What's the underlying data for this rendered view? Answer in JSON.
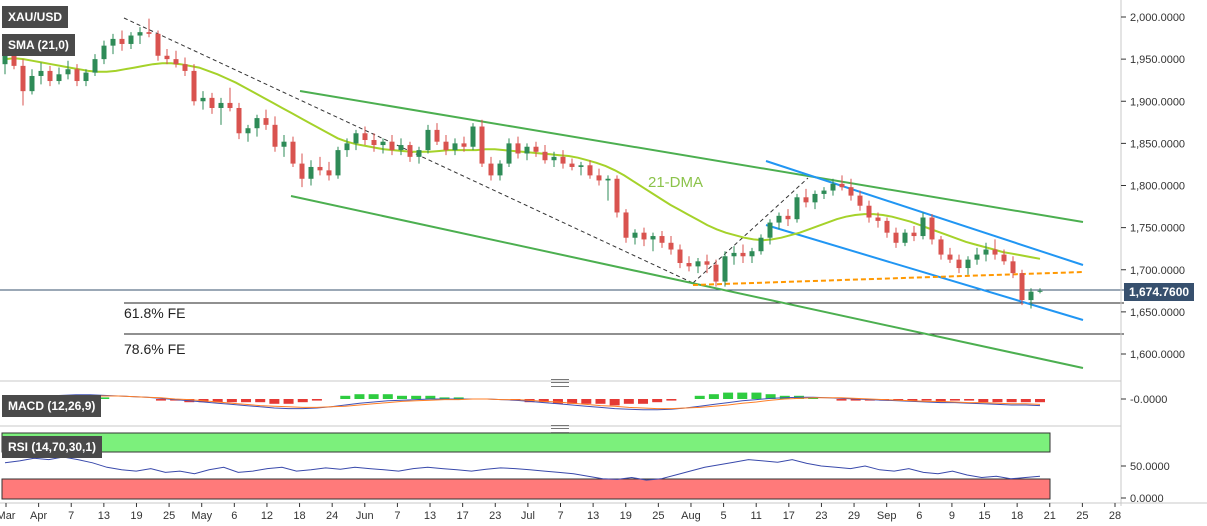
{
  "symbol": "XAU/USD",
  "indicators": {
    "sma_label": "SMA (21,0)",
    "macd_label": "MACD (12,26,9)",
    "rsi_label": "RSI (14,70,30,1)"
  },
  "current_price_label": "1,674.7600",
  "annotations": {
    "fe_618": "61.8% FE",
    "fe_786": "78.6% FE",
    "dma": "21-DMA"
  },
  "colors": {
    "up_candle": "#2e8b57",
    "down_candle": "#d9534f",
    "sma_line": "#a5d22a",
    "channel_green": "#4caf50",
    "channel_blue": "#2196f3",
    "dashed_orange": "#ff9800",
    "macd_line": "#3f51b5",
    "signal_line": "#ff7f27",
    "rsi_line": "#3949ab",
    "overbought_zone": "#7cf07c",
    "oversold_zone": "#ff7a7a"
  },
  "chart_data": {
    "type": "candlestick",
    "title": "XAU/USD",
    "price_axis": {
      "ticks": [
        "2,000.0000",
        "1,950.0000",
        "1,900.0000",
        "1,850.0000",
        "1,800.0000",
        "1,750.0000",
        "1,700.0000",
        "1,650.0000",
        "1,600.0000"
      ],
      "ylim": [
        1575,
        2010
      ]
    },
    "date_axis": {
      "ticks": [
        "Mar",
        "Apr",
        "7",
        "13",
        "19",
        "25",
        "May",
        "6",
        "12",
        "18",
        "24",
        "Jun",
        "7",
        "13",
        "17",
        "23",
        "Jul",
        "7",
        "13",
        "19",
        "25",
        "Aug",
        "5",
        "11",
        "17",
        "23",
        "29",
        "Sep",
        "6",
        "9",
        "15",
        "18",
        "21",
        "25",
        "28"
      ]
    },
    "ohlc": [
      {
        "o": 1944,
        "h": 1962,
        "l": 1932,
        "c": 1956
      },
      {
        "o": 1956,
        "h": 1966,
        "l": 1938,
        "c": 1942
      },
      {
        "o": 1942,
        "h": 1950,
        "l": 1895,
        "c": 1912
      },
      {
        "o": 1912,
        "h": 1938,
        "l": 1908,
        "c": 1930
      },
      {
        "o": 1930,
        "h": 1946,
        "l": 1920,
        "c": 1936
      },
      {
        "o": 1936,
        "h": 1942,
        "l": 1918,
        "c": 1924
      },
      {
        "o": 1924,
        "h": 1940,
        "l": 1920,
        "c": 1932
      },
      {
        "o": 1932,
        "h": 1948,
        "l": 1926,
        "c": 1938
      },
      {
        "o": 1938,
        "h": 1944,
        "l": 1918,
        "c": 1924
      },
      {
        "o": 1924,
        "h": 1938,
        "l": 1918,
        "c": 1934
      },
      {
        "o": 1934,
        "h": 1956,
        "l": 1930,
        "c": 1950
      },
      {
        "o": 1950,
        "h": 1972,
        "l": 1944,
        "c": 1966
      },
      {
        "o": 1966,
        "h": 1980,
        "l": 1956,
        "c": 1974
      },
      {
        "o": 1974,
        "h": 1984,
        "l": 1960,
        "c": 1968
      },
      {
        "o": 1968,
        "h": 1982,
        "l": 1962,
        "c": 1978
      },
      {
        "o": 1978,
        "h": 1988,
        "l": 1968,
        "c": 1982
      },
      {
        "o": 1982,
        "h": 1998,
        "l": 1976,
        "c": 1980
      },
      {
        "o": 1980,
        "h": 1984,
        "l": 1948,
        "c": 1954
      },
      {
        "o": 1954,
        "h": 1962,
        "l": 1944,
        "c": 1950
      },
      {
        "o": 1950,
        "h": 1960,
        "l": 1940,
        "c": 1944
      },
      {
        "o": 1944,
        "h": 1952,
        "l": 1930,
        "c": 1936
      },
      {
        "o": 1936,
        "h": 1944,
        "l": 1895,
        "c": 1900
      },
      {
        "o": 1900,
        "h": 1912,
        "l": 1890,
        "c": 1904
      },
      {
        "o": 1904,
        "h": 1910,
        "l": 1885,
        "c": 1892
      },
      {
        "o": 1892,
        "h": 1904,
        "l": 1872,
        "c": 1898
      },
      {
        "o": 1898,
        "h": 1916,
        "l": 1888,
        "c": 1892
      },
      {
        "o": 1892,
        "h": 1898,
        "l": 1855,
        "c": 1862
      },
      {
        "o": 1862,
        "h": 1872,
        "l": 1852,
        "c": 1868
      },
      {
        "o": 1868,
        "h": 1884,
        "l": 1858,
        "c": 1880
      },
      {
        "o": 1880,
        "h": 1890,
        "l": 1866,
        "c": 1872
      },
      {
        "o": 1872,
        "h": 1882,
        "l": 1840,
        "c": 1846
      },
      {
        "o": 1846,
        "h": 1860,
        "l": 1834,
        "c": 1852
      },
      {
        "o": 1852,
        "h": 1858,
        "l": 1822,
        "c": 1826
      },
      {
        "o": 1826,
        "h": 1838,
        "l": 1798,
        "c": 1808
      },
      {
        "o": 1808,
        "h": 1830,
        "l": 1800,
        "c": 1822
      },
      {
        "o": 1822,
        "h": 1834,
        "l": 1812,
        "c": 1818
      },
      {
        "o": 1818,
        "h": 1828,
        "l": 1806,
        "c": 1812
      },
      {
        "o": 1812,
        "h": 1846,
        "l": 1808,
        "c": 1842
      },
      {
        "o": 1842,
        "h": 1856,
        "l": 1834,
        "c": 1850
      },
      {
        "o": 1850,
        "h": 1866,
        "l": 1842,
        "c": 1862
      },
      {
        "o": 1862,
        "h": 1870,
        "l": 1848,
        "c": 1854
      },
      {
        "o": 1854,
        "h": 1862,
        "l": 1840,
        "c": 1848
      },
      {
        "o": 1848,
        "h": 1856,
        "l": 1838,
        "c": 1852
      },
      {
        "o": 1852,
        "h": 1860,
        "l": 1836,
        "c": 1842
      },
      {
        "o": 1842,
        "h": 1856,
        "l": 1836,
        "c": 1848
      },
      {
        "o": 1848,
        "h": 1852,
        "l": 1828,
        "c": 1834
      },
      {
        "o": 1834,
        "h": 1846,
        "l": 1826,
        "c": 1842
      },
      {
        "o": 1842,
        "h": 1872,
        "l": 1838,
        "c": 1866
      },
      {
        "o": 1866,
        "h": 1874,
        "l": 1848,
        "c": 1852
      },
      {
        "o": 1852,
        "h": 1860,
        "l": 1836,
        "c": 1842
      },
      {
        "o": 1842,
        "h": 1856,
        "l": 1836,
        "c": 1850
      },
      {
        "o": 1850,
        "h": 1858,
        "l": 1840,
        "c": 1846
      },
      {
        "o": 1846,
        "h": 1874,
        "l": 1842,
        "c": 1870
      },
      {
        "o": 1870,
        "h": 1878,
        "l": 1822,
        "c": 1826
      },
      {
        "o": 1826,
        "h": 1834,
        "l": 1806,
        "c": 1812
      },
      {
        "o": 1812,
        "h": 1830,
        "l": 1806,
        "c": 1826
      },
      {
        "o": 1826,
        "h": 1856,
        "l": 1822,
        "c": 1850
      },
      {
        "o": 1850,
        "h": 1858,
        "l": 1832,
        "c": 1838
      },
      {
        "o": 1838,
        "h": 1850,
        "l": 1830,
        "c": 1846
      },
      {
        "o": 1846,
        "h": 1852,
        "l": 1834,
        "c": 1840
      },
      {
        "o": 1840,
        "h": 1848,
        "l": 1826,
        "c": 1830
      },
      {
        "o": 1830,
        "h": 1840,
        "l": 1822,
        "c": 1834
      },
      {
        "o": 1834,
        "h": 1842,
        "l": 1820,
        "c": 1826
      },
      {
        "o": 1826,
        "h": 1832,
        "l": 1818,
        "c": 1822
      },
      {
        "o": 1822,
        "h": 1828,
        "l": 1812,
        "c": 1824
      },
      {
        "o": 1824,
        "h": 1830,
        "l": 1808,
        "c": 1812
      },
      {
        "o": 1812,
        "h": 1820,
        "l": 1800,
        "c": 1806
      },
      {
        "o": 1806,
        "h": 1812,
        "l": 1782,
        "c": 1808
      },
      {
        "o": 1808,
        "h": 1812,
        "l": 1762,
        "c": 1768
      },
      {
        "o": 1768,
        "h": 1772,
        "l": 1732,
        "c": 1738
      },
      {
        "o": 1738,
        "h": 1748,
        "l": 1730,
        "c": 1744
      },
      {
        "o": 1744,
        "h": 1750,
        "l": 1728,
        "c": 1736
      },
      {
        "o": 1736,
        "h": 1744,
        "l": 1722,
        "c": 1740
      },
      {
        "o": 1740,
        "h": 1746,
        "l": 1726,
        "c": 1732
      },
      {
        "o": 1732,
        "h": 1740,
        "l": 1718,
        "c": 1724
      },
      {
        "o": 1724,
        "h": 1730,
        "l": 1702,
        "c": 1708
      },
      {
        "o": 1708,
        "h": 1716,
        "l": 1698,
        "c": 1704
      },
      {
        "o": 1704,
        "h": 1714,
        "l": 1696,
        "c": 1710
      },
      {
        "o": 1710,
        "h": 1718,
        "l": 1696,
        "c": 1706
      },
      {
        "o": 1706,
        "h": 1712,
        "l": 1680,
        "c": 1686
      },
      {
        "o": 1686,
        "h": 1722,
        "l": 1680,
        "c": 1716
      },
      {
        "o": 1716,
        "h": 1728,
        "l": 1706,
        "c": 1720
      },
      {
        "o": 1720,
        "h": 1730,
        "l": 1708,
        "c": 1716
      },
      {
        "o": 1716,
        "h": 1726,
        "l": 1708,
        "c": 1722
      },
      {
        "o": 1722,
        "h": 1742,
        "l": 1718,
        "c": 1738
      },
      {
        "o": 1738,
        "h": 1760,
        "l": 1730,
        "c": 1756
      },
      {
        "o": 1756,
        "h": 1768,
        "l": 1748,
        "c": 1764
      },
      {
        "o": 1764,
        "h": 1772,
        "l": 1752,
        "c": 1760
      },
      {
        "o": 1760,
        "h": 1790,
        "l": 1756,
        "c": 1786
      },
      {
        "o": 1786,
        "h": 1796,
        "l": 1774,
        "c": 1780
      },
      {
        "o": 1780,
        "h": 1794,
        "l": 1772,
        "c": 1790
      },
      {
        "o": 1790,
        "h": 1798,
        "l": 1784,
        "c": 1794
      },
      {
        "o": 1794,
        "h": 1808,
        "l": 1788,
        "c": 1802
      },
      {
        "o": 1802,
        "h": 1812,
        "l": 1794,
        "c": 1798
      },
      {
        "o": 1798,
        "h": 1808,
        "l": 1782,
        "c": 1788
      },
      {
        "o": 1788,
        "h": 1794,
        "l": 1770,
        "c": 1776
      },
      {
        "o": 1776,
        "h": 1782,
        "l": 1756,
        "c": 1762
      },
      {
        "o": 1762,
        "h": 1768,
        "l": 1750,
        "c": 1758
      },
      {
        "o": 1758,
        "h": 1762,
        "l": 1738,
        "c": 1744
      },
      {
        "o": 1744,
        "h": 1750,
        "l": 1726,
        "c": 1732
      },
      {
        "o": 1732,
        "h": 1748,
        "l": 1728,
        "c": 1744
      },
      {
        "o": 1744,
        "h": 1752,
        "l": 1734,
        "c": 1740
      },
      {
        "o": 1740,
        "h": 1768,
        "l": 1736,
        "c": 1762
      },
      {
        "o": 1762,
        "h": 1766,
        "l": 1730,
        "c": 1736
      },
      {
        "o": 1736,
        "h": 1740,
        "l": 1712,
        "c": 1718
      },
      {
        "o": 1718,
        "h": 1726,
        "l": 1708,
        "c": 1712
      },
      {
        "o": 1712,
        "h": 1718,
        "l": 1696,
        "c": 1702
      },
      {
        "o": 1702,
        "h": 1716,
        "l": 1694,
        "c": 1712
      },
      {
        "o": 1712,
        "h": 1726,
        "l": 1706,
        "c": 1718
      },
      {
        "o": 1718,
        "h": 1732,
        "l": 1710,
        "c": 1724
      },
      {
        "o": 1724,
        "h": 1736,
        "l": 1712,
        "c": 1718
      },
      {
        "o": 1718,
        "h": 1724,
        "l": 1706,
        "c": 1710
      },
      {
        "o": 1710,
        "h": 1716,
        "l": 1690,
        "c": 1696
      },
      {
        "o": 1696,
        "h": 1700,
        "l": 1658,
        "c": 1664
      },
      {
        "o": 1664,
        "h": 1678,
        "l": 1654,
        "c": 1674
      },
      {
        "o": 1674,
        "h": 1678,
        "l": 1672,
        "c": 1675
      }
    ],
    "sma_values": [
      1950,
      1951,
      1950,
      1948,
      1946,
      1944,
      1942,
      1940,
      1938,
      1936,
      1935,
      1935,
      1936,
      1938,
      1940,
      1942,
      1944,
      1945,
      1945,
      1944,
      1942,
      1940,
      1936,
      1932,
      1927,
      1922,
      1916,
      1910,
      1904,
      1898,
      1892,
      1886,
      1880,
      1874,
      1868,
      1862,
      1856,
      1852,
      1849,
      1847,
      1845,
      1843,
      1842,
      1841,
      1840,
      1840,
      1840,
      1841,
      1842,
      1842,
      1842,
      1842,
      1843,
      1843,
      1842,
      1841,
      1840,
      1839,
      1838,
      1837,
      1836,
      1835,
      1833,
      1830,
      1827,
      1823,
      1818,
      1812,
      1805,
      1798,
      1791,
      1784,
      1777,
      1771,
      1765,
      1759,
      1753,
      1748,
      1744,
      1741,
      1738,
      1736,
      1735,
      1736,
      1738,
      1741,
      1744,
      1748,
      1752,
      1756,
      1760,
      1763,
      1765,
      1766,
      1766,
      1765,
      1763,
      1760,
      1757,
      1753,
      1749,
      1745,
      1741,
      1737,
      1733,
      1730,
      1727,
      1724,
      1721,
      1719,
      1717,
      1715,
      1713
    ],
    "macd": {
      "series": [
        {
          "name": "MACD",
          "values": [
            0,
            2,
            4,
            5,
            6,
            7,
            7,
            6,
            5,
            4,
            3,
            1,
            -1,
            -3,
            -5,
            -7,
            -9,
            -11,
            -13,
            -15,
            -16,
            -16,
            -15,
            -13,
            -10,
            -7,
            -5,
            -3,
            -2,
            -1,
            0,
            0,
            0,
            0,
            0,
            -1,
            -2,
            -4,
            -6,
            -8,
            -10,
            -12,
            -14,
            -16,
            -17,
            -18,
            -18,
            -17,
            -15,
            -12,
            -9,
            -6,
            -3,
            -1,
            1,
            2,
            3,
            3,
            2,
            1,
            0,
            -1,
            -2,
            -3,
            -4,
            -5,
            -6,
            -6,
            -7,
            -8,
            -9,
            -10,
            -10,
            -11
          ]
        },
        {
          "name": "Signal",
          "values": [
            0,
            1,
            2,
            3,
            4,
            5,
            5,
            5,
            5,
            4,
            3,
            2,
            0,
            -1,
            -3,
            -5,
            -7,
            -9,
            -11,
            -12,
            -13,
            -14,
            -14,
            -13,
            -12,
            -10,
            -8,
            -6,
            -4,
            -3,
            -2,
            -1,
            -1,
            0,
            0,
            -1,
            -1,
            -2,
            -4,
            -5,
            -7,
            -9,
            -11,
            -12,
            -14,
            -15,
            -16,
            -16,
            -15,
            -14,
            -12,
            -10,
            -7,
            -5,
            -2,
            0,
            1,
            2,
            2,
            2,
            1,
            0,
            -1,
            -2,
            -3,
            -4,
            -4,
            -5,
            -6,
            -6,
            -7,
            -8,
            -8,
            -9
          ]
        }
      ],
      "histogram": [
        0,
        1,
        2,
        2,
        2,
        2,
        2,
        1,
        0,
        0,
        0,
        -1,
        -1,
        -2,
        -2,
        -2,
        -2,
        -2,
        -2,
        -3,
        -3,
        -2,
        -1,
        0,
        2,
        3,
        3,
        3,
        2,
        2,
        2,
        1,
        1,
        0,
        0,
        0,
        -1,
        -2,
        -2,
        -3,
        -3,
        -3,
        -3,
        -4,
        -3,
        -3,
        -2,
        -1,
        0,
        2,
        3,
        4,
        4,
        4,
        3,
        2,
        2,
        1,
        0,
        -1,
        -1,
        -1,
        -1,
        -1,
        -1,
        -1,
        -2,
        -1,
        -1,
        -2,
        -2,
        -2,
        -2,
        -2
      ],
      "zero_label": "-0.0000"
    },
    "rsi": {
      "values": [
        55,
        58,
        62,
        60,
        64,
        60,
        55,
        48,
        44,
        42,
        46,
        40,
        42,
        38,
        44,
        48,
        40,
        42,
        46,
        48,
        42,
        44,
        47,
        45,
        48,
        46,
        44,
        42,
        46,
        48,
        46,
        44,
        42,
        45,
        47,
        46,
        44,
        42,
        40,
        38,
        34,
        30,
        29,
        32,
        28,
        30,
        36,
        42,
        48,
        52,
        56,
        60,
        58,
        56,
        60,
        54,
        50,
        48,
        46,
        50,
        44,
        42,
        46,
        40,
        38,
        42,
        36,
        32,
        34,
        30,
        32,
        34
      ],
      "ticks": [
        "50.0000",
        "0.0000"
      ],
      "overbought": 70,
      "oversold": 30
    }
  }
}
